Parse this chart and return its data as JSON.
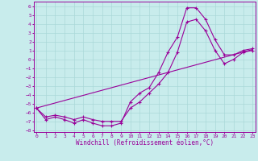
{
  "xlabel": "Windchill (Refroidissement éolien,°C)",
  "x_ticks": [
    0,
    1,
    2,
    3,
    4,
    5,
    6,
    7,
    8,
    9,
    10,
    11,
    12,
    13,
    14,
    15,
    16,
    17,
    18,
    19,
    20,
    21,
    22,
    23
  ],
  "xlim": [
    -0.3,
    23.3
  ],
  "ylim": [
    -8.2,
    6.5
  ],
  "y_ticks": [
    -8,
    -7,
    -6,
    -5,
    -4,
    -3,
    -2,
    -1,
    0,
    1,
    2,
    3,
    4,
    5,
    6
  ],
  "bg_color": "#c8ecec",
  "grid_color": "#aad8d8",
  "line_color": "#990099",
  "series1_x": [
    0,
    1,
    2,
    3,
    4,
    5,
    6,
    7,
    8,
    9,
    10,
    11,
    12,
    13,
    14,
    15,
    16,
    17,
    18,
    19,
    20,
    21,
    22,
    23
  ],
  "series1_y": [
    -5.5,
    -6.8,
    -6.5,
    -6.8,
    -7.2,
    -6.8,
    -7.2,
    -7.5,
    -7.5,
    -7.2,
    -4.8,
    -3.8,
    -3.2,
    -1.5,
    0.8,
    2.5,
    5.8,
    5.8,
    4.5,
    2.2,
    0.5,
    0.5,
    1.0,
    1.2
  ],
  "series2_x": [
    0,
    1,
    2,
    3,
    4,
    5,
    6,
    7,
    8,
    9,
    10,
    11,
    12,
    13,
    14,
    15,
    16,
    17,
    18,
    19,
    20,
    21,
    22,
    23
  ],
  "series2_y": [
    -5.5,
    -6.5,
    -6.3,
    -6.5,
    -6.8,
    -6.5,
    -6.8,
    -7.0,
    -7.0,
    -7.0,
    -5.5,
    -4.8,
    -3.8,
    -2.8,
    -1.5,
    0.8,
    4.2,
    4.5,
    3.2,
    1.0,
    -0.5,
    0.0,
    0.8,
    1.0
  ],
  "series3_x": [
    0,
    23
  ],
  "series3_y": [
    -5.5,
    1.1
  ],
  "tick_fontsize": 4.5,
  "xlabel_fontsize": 5.5
}
